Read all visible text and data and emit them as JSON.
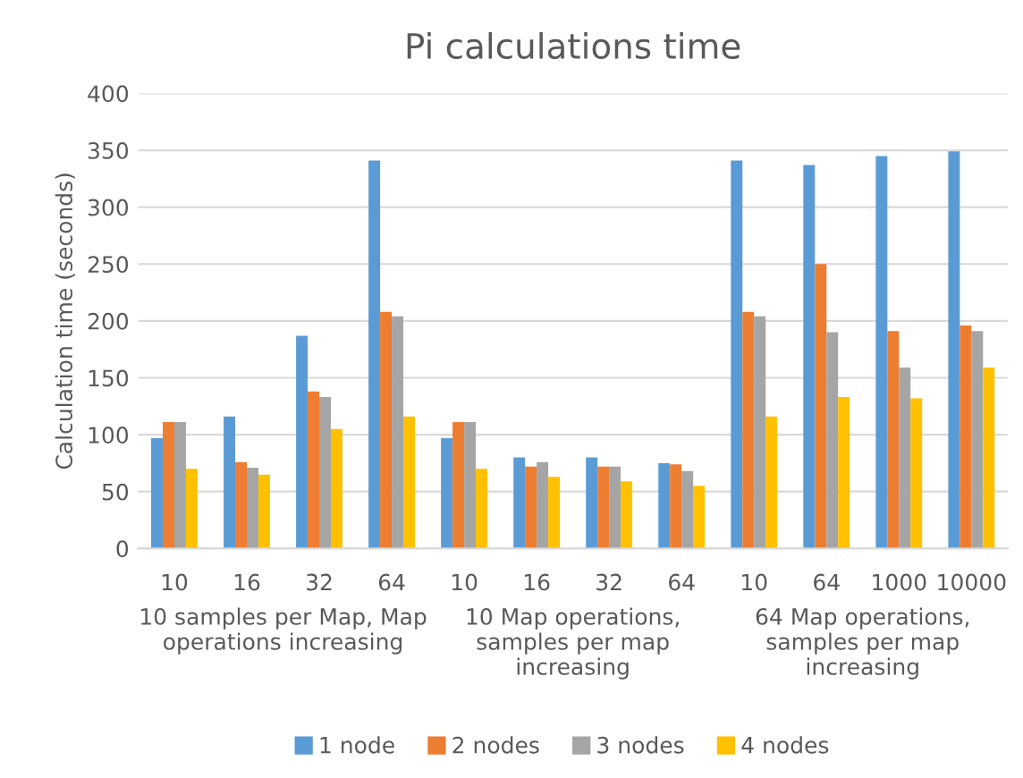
{
  "chart_data": {
    "type": "bar",
    "title": "Pi calculations time",
    "ylabel": "Calculation time (seconds)",
    "categories": [
      "10",
      "16",
      "32",
      "64",
      "10",
      "16",
      "32",
      "64",
      "10",
      "64",
      "1000",
      "10000"
    ],
    "series": [
      {
        "name": "1 node",
        "color": "#5b9bd5",
        "values": [
          97,
          116,
          187,
          341,
          97,
          80,
          80,
          75,
          341,
          337,
          345,
          349
        ]
      },
      {
        "name": "2 nodes",
        "color": "#ed7d31",
        "values": [
          111,
          76,
          138,
          208,
          111,
          72,
          72,
          74,
          208,
          250,
          191,
          196
        ]
      },
      {
        "name": "3 nodes",
        "color": "#a5a5a5",
        "values": [
          111,
          71,
          133,
          204,
          111,
          76,
          72,
          68,
          204,
          190,
          159,
          191
        ]
      },
      {
        "name": "4 nodes",
        "color": "#ffc000",
        "values": [
          70,
          65,
          105,
          116,
          70,
          63,
          59,
          55,
          116,
          133,
          132,
          159
        ]
      }
    ],
    "annotations": [
      "10 samples per Map, Map\noperations increasing",
      "10 Map operations,\nsamples per map\nincreasing",
      "64 Map operations,\nsamples per map\nincreasing"
    ],
    "ylim": [
      0,
      400
    ],
    "yticks": [
      0,
      50,
      100,
      150,
      200,
      250,
      300,
      350,
      400
    ],
    "grid": "y",
    "legend": "bottom"
  }
}
